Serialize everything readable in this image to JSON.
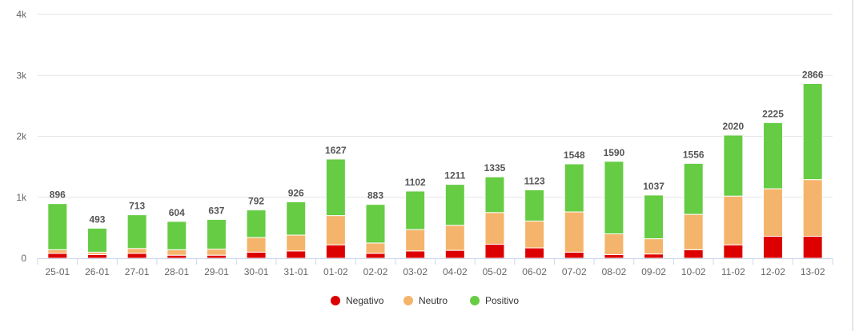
{
  "chart_data": {
    "type": "bar",
    "stacked": true,
    "categories": [
      "25-01",
      "26-01",
      "27-01",
      "28-01",
      "29-01",
      "30-01",
      "31-01",
      "01-02",
      "02-02",
      "03-02",
      "04-02",
      "05-02",
      "06-02",
      "07-02",
      "08-02",
      "09-02",
      "10-02",
      "11-02",
      "12-02",
      "13-02"
    ],
    "series": [
      {
        "name": "Negativo",
        "color": "#dd0000",
        "values": [
          80,
          60,
          80,
          50,
          50,
          100,
          120,
          220,
          80,
          120,
          130,
          230,
          170,
          100,
          60,
          70,
          140,
          220,
          360,
          360
        ]
      },
      {
        "name": "Neutro",
        "color": "#f5b46b",
        "values": [
          60,
          40,
          80,
          90,
          100,
          240,
          260,
          480,
          170,
          350,
          410,
          520,
          440,
          660,
          340,
          250,
          580,
          800,
          780,
          930
        ]
      },
      {
        "name": "Positivo",
        "color": "#66cc44",
        "values": [
          756,
          393,
          553,
          464,
          487,
          452,
          546,
          927,
          633,
          632,
          671,
          585,
          513,
          788,
          1190,
          717,
          836,
          1000,
          1085,
          1576
        ]
      }
    ],
    "totals": [
      896,
      493,
      713,
      604,
      637,
      792,
      926,
      1627,
      883,
      1102,
      1211,
      1335,
      1123,
      1548,
      1590,
      1037,
      1556,
      2020,
      2225,
      2866
    ],
    "y_ticks": [
      {
        "value": 0,
        "label": "0"
      },
      {
        "value": 1000,
        "label": "1k"
      },
      {
        "value": 2000,
        "label": "2k"
      },
      {
        "value": 3000,
        "label": "3k"
      },
      {
        "value": 4000,
        "label": "4k"
      }
    ],
    "ylim": [
      0,
      4000
    ],
    "grid": true,
    "legend_position": "bottom-center"
  }
}
